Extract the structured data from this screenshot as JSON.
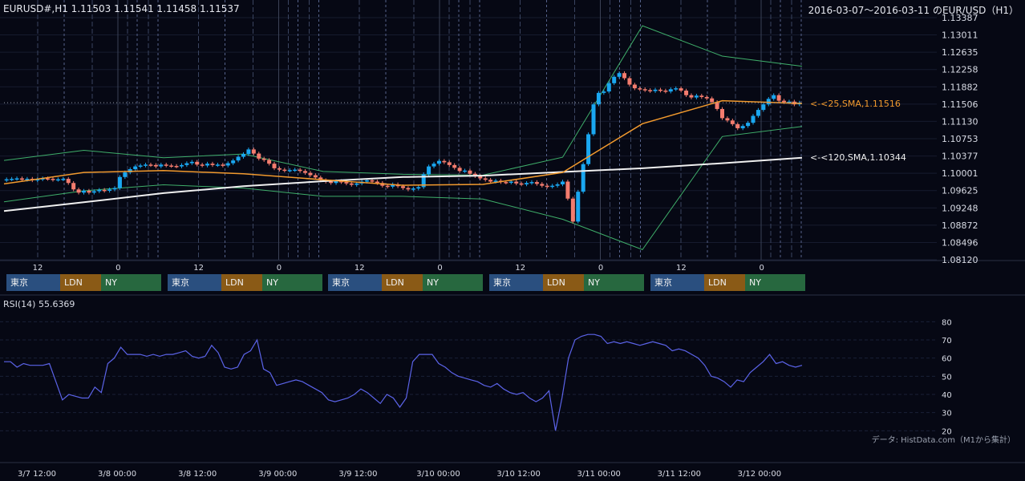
{
  "header": {
    "symbol_info": "EURUSD#,H1 1.11503 1.11541 1.11458 1.11537",
    "range_title": "2016-03-07～2016-03-11 のEUR/USD（H1）"
  },
  "colors": {
    "background": "#060814",
    "bull": "#1aa7f0",
    "bear": "#f47c6e",
    "sma25": "#f29a2e",
    "sma120": "#f0f0f0",
    "bollinger": "#3fae6a",
    "rsi": "#5b63e8",
    "session_tokyo": "#2a4f7f",
    "session_london": "#8a5a16",
    "session_ny": "#27683f"
  },
  "sessions": {
    "tokyo": "東京",
    "london": "LDN",
    "ny": "NY"
  },
  "rsi_panel": {
    "title": "RSI(14) 55.6369",
    "credit": "データ: HistData.com（M1から集計）"
  },
  "chart_data": [
    {
      "type": "candlestick",
      "title": "EURUSD#,H1 1.11503 1.11541 1.11458 1.11537",
      "ylim": [
        1.0812,
        1.13387
      ],
      "price_ticks": [
        "1.13387",
        "1.13011",
        "1.12635",
        "1.12258",
        "1.11882",
        "1.11506",
        "1.11130",
        "1.10753",
        "1.10377",
        "1.10001",
        "1.09625",
        "1.09248",
        "1.08872",
        "1.08496",
        "1.08120"
      ],
      "hour_ticks": [
        "12",
        "0",
        "12",
        "0",
        "12",
        "0",
        "12",
        "0",
        "12",
        "0"
      ],
      "annotations": [
        "<-<25,SMA,1.11516",
        "<-<120,SMA,1.10344"
      ],
      "last_price": 1.11537,
      "close_series": [
        1.0987,
        1.0988,
        1.0989,
        1.0986,
        1.0988,
        1.0985,
        1.0987,
        1.0989,
        1.0988,
        1.0986,
        1.0987,
        1.0988,
        1.0979,
        1.0965,
        1.0958,
        1.0962,
        1.0958,
        1.0961,
        1.0964,
        1.0962,
        1.0965,
        1.0968,
        1.0992,
        1.1002,
        1.1009,
        1.1015,
        1.1017,
        1.1019,
        1.1018,
        1.1015,
        1.1019,
        1.1017,
        1.1016,
        1.1015,
        1.1018,
        1.1022,
        1.1025,
        1.1019,
        1.1017,
        1.1021,
        1.1018,
        1.1019,
        1.1017,
        1.1022,
        1.1028,
        1.1036,
        1.1042,
        1.1052,
        1.1043,
        1.1032,
        1.1029,
        1.1021,
        1.1011,
        1.1008,
        1.1006,
        1.1007,
        1.1008,
        1.1005,
        1.1001,
        1.0996,
        1.0991,
        1.0985,
        1.0982,
        1.0979,
        1.0983,
        1.0981,
        1.0978,
        1.0975,
        1.0978,
        1.0982,
        1.0985,
        1.0982,
        1.0979,
        1.0973,
        1.0971,
        1.0976,
        1.0972,
        1.0968,
        1.0965,
        1.0967,
        1.097,
        1.0998,
        1.1015,
        1.1021,
        1.1027,
        1.1024,
        1.1018,
        1.1012,
        1.1005,
        1.1006,
        1.0999,
        1.0994,
        1.0989,
        1.0986,
        1.0982,
        1.0984,
        1.0981,
        1.098,
        1.0982,
        1.0978,
        1.0976,
        1.0979,
        1.0981,
        1.0977,
        1.0973,
        1.0971,
        1.0973,
        1.0976,
        1.0982,
        1.0945,
        1.0895,
        1.096,
        1.102,
        1.1085,
        1.115,
        1.1175,
        1.1178,
        1.1196,
        1.121,
        1.1218,
        1.1207,
        1.1193,
        1.1185,
        1.1183,
        1.1181,
        1.1179,
        1.1182,
        1.118,
        1.1178,
        1.1183,
        1.1185,
        1.118,
        1.117,
        1.1165,
        1.1169,
        1.1166,
        1.1163,
        1.1155,
        1.114,
        1.112,
        1.1115,
        1.1107,
        1.1098,
        1.1103,
        1.111,
        1.1125,
        1.1138,
        1.115,
        1.1162,
        1.117,
        1.1158,
        1.1155,
        1.1156,
        1.115,
        1.11537
      ],
      "sma25": [
        1.0977,
        1.1002,
        1.1006,
        1.0999,
        1.0986,
        1.0974,
        1.0976,
        1.1002,
        1.1108,
        1.1158,
        1.1152
      ],
      "sma120": [
        1.0918,
        1.0937,
        1.0957,
        1.0972,
        1.0983,
        1.0992,
        1.0995,
        1.1003,
        1.1011,
        1.1022,
        1.1034
      ],
      "bollinger_upper": [
        1.1028,
        1.105,
        1.1034,
        1.1042,
        1.1004,
        1.0998,
        1.0996,
        1.1035,
        1.1321,
        1.1255,
        1.1233
      ],
      "bollinger_lower": [
        1.0938,
        1.0962,
        1.0975,
        1.0968,
        1.095,
        1.095,
        1.0944,
        1.09,
        1.0834,
        1.108,
        1.1102
      ]
    },
    {
      "type": "line",
      "title": "RSI(14) 55.6369",
      "ylim": [
        10,
        85
      ],
      "y_ticks": [
        "80",
        "70",
        "60",
        "50",
        "40",
        "30",
        "20"
      ],
      "x_labels": [
        "3/7 12:00",
        "3/8 00:00",
        "3/8 12:00",
        "3/9 00:00",
        "3/9 12:00",
        "3/10 00:00",
        "3/10 12:00",
        "3/11 00:00",
        "3/11 12:00",
        "3/12 00:00"
      ],
      "series": [
        {
          "values": [
            58,
            58,
            55,
            57,
            56,
            56,
            56,
            57,
            47,
            37,
            40,
            39,
            38,
            38,
            44,
            41,
            57,
            60,
            66,
            62,
            62,
            62,
            61,
            62,
            61,
            62,
            62,
            63,
            64,
            61,
            60,
            61,
            67,
            63,
            55,
            54,
            55,
            62,
            64,
            70,
            54,
            52,
            45,
            46,
            47,
            48,
            47,
            45,
            43,
            41,
            37,
            36,
            37,
            38,
            40,
            43,
            41,
            38,
            35,
            40,
            38,
            33,
            38,
            58,
            62,
            62,
            62,
            57,
            55,
            52,
            50,
            49,
            48,
            47,
            45,
            44,
            46,
            43,
            41,
            40,
            41,
            38,
            36,
            38,
            42,
            20,
            38,
            60,
            70,
            72,
            73,
            73,
            72,
            68,
            69,
            68,
            69,
            68,
            67,
            68,
            69,
            68,
            67,
            64,
            65,
            64,
            62,
            60,
            56,
            50,
            49,
            47,
            44,
            48,
            47,
            52,
            55,
            58,
            62,
            57,
            58,
            56,
            55,
            56
          ]
        }
      ]
    }
  ]
}
